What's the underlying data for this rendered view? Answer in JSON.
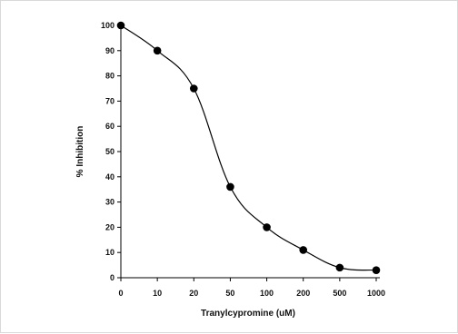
{
  "chart_data": {
    "type": "line",
    "title": "",
    "xlabel": "Tranylcypromine (uM)",
    "ylabel": "% Inhibition",
    "categories": [
      "0",
      "10",
      "20",
      "50",
      "100",
      "200",
      "500",
      "1000"
    ],
    "series": [
      {
        "values": [
          100,
          90,
          75,
          36,
          20,
          11,
          4,
          3
        ]
      }
    ],
    "ylim": [
      0,
      100
    ],
    "yticks": [
      0,
      10,
      20,
      30,
      40,
      50,
      60,
      70,
      80,
      90,
      100
    ],
    "grid": false,
    "legend": "none",
    "line_color": "#000000",
    "marker_color": "#000000"
  }
}
